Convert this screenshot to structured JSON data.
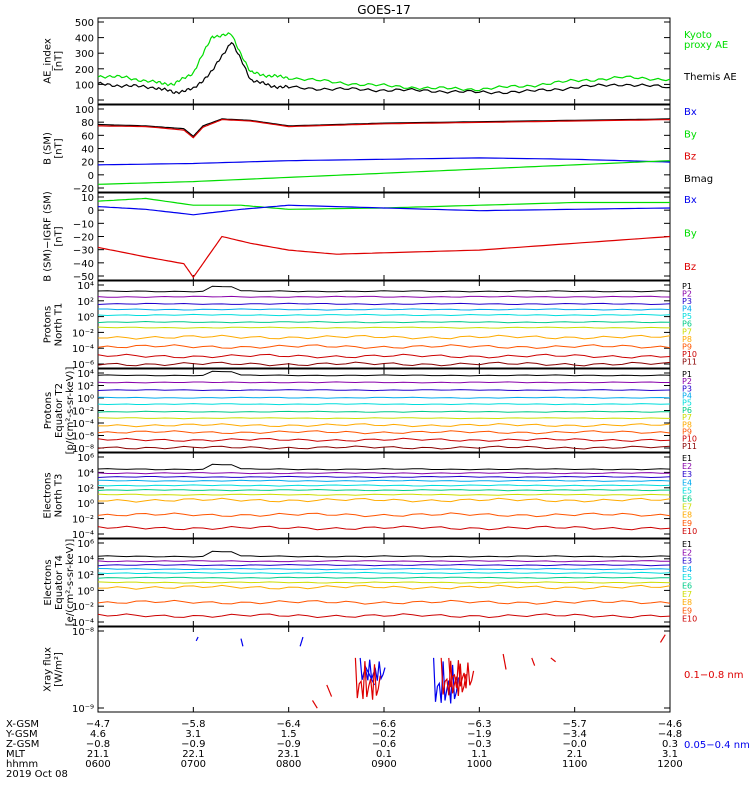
{
  "title": "GOES-17",
  "colors": {
    "black": "#000000",
    "green": "#00dd00",
    "blue": "#0000ee",
    "red": "#dd0000",
    "e_ramp": [
      "#000000",
      "#8800aa",
      "#2200cc",
      "#00aaee",
      "#00dddd",
      "#00cc88",
      "#ccdd00",
      "#ffaa00",
      "#ff5500",
      "#cc0000",
      "#880000"
    ]
  },
  "chart_data": [
    {
      "type": "line",
      "ylabel": [
        "AE_index",
        "[nT]"
      ],
      "yticks": [
        "500",
        "400",
        "300",
        "200",
        "100",
        "0"
      ],
      "ylim": [
        0,
        520
      ],
      "legend": [
        {
          "label": "Kyoto",
          "color": "#00dd00"
        },
        {
          "label": "proxy AE",
          "color": "#00dd00"
        },
        {
          "label": "Themis AE",
          "color": "#000000"
        }
      ],
      "series": [
        {
          "name": "Themis AE",
          "color": "#000000",
          "x": [
            6.0,
            6.3,
            6.6,
            6.8,
            7.0,
            7.2,
            7.4,
            7.6,
            7.8,
            8.0,
            8.5,
            9.0,
            9.5,
            10.0,
            10.5,
            11.0,
            11.5,
            12.0
          ],
          "y": [
            120,
            110,
            100,
            70,
            90,
            200,
            380,
            150,
            110,
            100,
            90,
            85,
            80,
            70,
            75,
            100,
            120,
            100
          ]
        },
        {
          "name": "Kyoto proxy AE",
          "color": "#00dd00",
          "x": [
            6.0,
            6.3,
            6.6,
            6.8,
            7.0,
            7.2,
            7.4,
            7.6,
            7.8,
            8.0,
            8.5,
            9.0,
            9.5,
            10.0,
            10.5,
            11.0,
            11.5,
            12.0
          ],
          "y": [
            170,
            160,
            130,
            120,
            190,
            410,
            420,
            190,
            170,
            160,
            130,
            110,
            95,
            90,
            110,
            140,
            160,
            150
          ]
        }
      ]
    },
    {
      "type": "line",
      "ylabel": [
        "B (SM)",
        "[nT]"
      ],
      "yticks": [
        "100",
        "80",
        "60",
        "40",
        "20",
        "0",
        "−20"
      ],
      "ylim": [
        -25,
        100
      ],
      "legend": [
        {
          "label": "Bx",
          "color": "#0000ee"
        },
        {
          "label": "By",
          "color": "#00dd00"
        },
        {
          "label": "Bz",
          "color": "#dd0000"
        },
        {
          "label": "Bmag",
          "color": "#000000"
        }
      ],
      "series": [
        {
          "name": "Bmag",
          "color": "#000000",
          "x": [
            6.0,
            6.5,
            6.9,
            7.0,
            7.1,
            7.3,
            7.6,
            8.0,
            8.5,
            9.0,
            10.0,
            11.0,
            12.0
          ],
          "y": [
            72,
            70,
            66,
            55,
            70,
            80,
            78,
            70,
            72,
            74,
            76,
            78,
            80
          ]
        },
        {
          "name": "Bz",
          "color": "#dd0000",
          "x": [
            6.0,
            6.5,
            6.9,
            7.0,
            7.1,
            7.3,
            7.6,
            8.0,
            8.5,
            9.0,
            10.0,
            11.0,
            12.0
          ],
          "y": [
            70,
            69,
            64,
            53,
            68,
            79,
            77,
            69,
            71,
            73,
            75,
            77,
            79
          ]
        },
        {
          "name": "Bx",
          "color": "#0000ee",
          "x": [
            6.0,
            7.0,
            8.0,
            9.0,
            10.0,
            11.0,
            12.0
          ],
          "y": [
            14,
            16,
            20,
            22,
            24,
            22,
            18
          ]
        },
        {
          "name": "By",
          "color": "#00dd00",
          "x": [
            6.0,
            7.0,
            8.0,
            9.0,
            10.0,
            11.0,
            12.0
          ],
          "y": [
            -14,
            -10,
            -4,
            2,
            8,
            14,
            20
          ]
        }
      ]
    },
    {
      "type": "line",
      "ylabel": [
        "B (SM)−IGRF (SM)",
        "[nT]"
      ],
      "yticks": [
        "10",
        "0",
        "−10",
        "−20",
        "−30",
        "−40",
        "−50"
      ],
      "ylim": [
        -52,
        12
      ],
      "legend": [
        {
          "label": "Bx",
          "color": "#0000ee"
        },
        {
          "label": "By",
          "color": "#00dd00"
        },
        {
          "label": "Bz",
          "color": "#dd0000"
        }
      ],
      "series": [
        {
          "name": "By",
          "color": "#00dd00",
          "x": [
            6.0,
            6.5,
            7.0,
            7.5,
            8.0,
            9.0,
            10.0,
            11.0,
            12.0
          ],
          "y": [
            6,
            8,
            3,
            3,
            0,
            1,
            3,
            5,
            5
          ]
        },
        {
          "name": "Bx",
          "color": "#0000ee",
          "x": [
            6.0,
            6.5,
            7.0,
            7.5,
            8.0,
            9.0,
            10.0,
            11.0,
            12.0
          ],
          "y": [
            2,
            0,
            -4,
            0,
            3,
            1,
            -1,
            0,
            1
          ]
        },
        {
          "name": "Bz",
          "color": "#dd0000",
          "x": [
            6.0,
            6.5,
            6.9,
            7.0,
            7.1,
            7.3,
            7.6,
            8.0,
            8.5,
            9.0,
            10.0,
            11.0,
            12.0
          ],
          "y": [
            -28,
            -35,
            -40,
            -50,
            -40,
            -20,
            -25,
            -30,
            -33,
            -32,
            -30,
            -25,
            -20
          ]
        }
      ]
    },
    {
      "type": "line",
      "ylabel": [
        "Protons",
        "North T1"
      ],
      "yticks": [
        "10⁴",
        "10²",
        "10⁰",
        "10⁻²",
        "10⁻⁴",
        "10⁻⁶"
      ],
      "ylim": [
        -6.5,
        4.5
      ],
      "legend_labels": [
        "P1",
        "P2",
        "P3",
        "P4",
        "P5",
        "P6",
        "P7",
        "P8",
        "P9",
        "P10",
        "P11"
      ],
      "levels": [
        3.2,
        2.5,
        1.6,
        0.9,
        0.2,
        -0.7,
        -1.4,
        -2.6,
        -3.8,
        -5.0,
        -6.0
      ]
    },
    {
      "type": "line",
      "ylabel": [
        "Protons",
        "Equator T2",
        "[p/(cm²-s-sr-keV)]"
      ],
      "yticks": [
        "10⁴",
        "10²",
        "10⁰",
        "10⁻²",
        "10⁻⁴",
        "10⁻⁶",
        "10⁻⁸"
      ],
      "ylim": [
        -8.5,
        4.5
      ],
      "legend_labels": [
        "P1",
        "P2",
        "P3",
        "P4",
        "P5",
        "P6",
        "P7",
        "P8",
        "P9",
        "P10",
        "P11"
      ],
      "levels": [
        3.5,
        2.4,
        1.2,
        0.0,
        -1.0,
        -2.2,
        -3.2,
        -4.3,
        -5.4,
        -6.6,
        -7.8
      ]
    },
    {
      "type": "line",
      "ylabel": [
        "Electrons",
        "North T3"
      ],
      "yticks": [
        "10⁶",
        "10⁴",
        "10²",
        "10⁰",
        "10⁻²",
        "10⁻⁴"
      ],
      "ylim": [
        -4.5,
        6.5
      ],
      "legend_labels": [
        "E1",
        "E2",
        "E3",
        "E4",
        "E5",
        "E6",
        "E7",
        "E8",
        "E9",
        "E10"
      ],
      "levels": [
        4.4,
        3.9,
        3.4,
        2.9,
        2.3,
        1.7,
        1.1,
        0.4,
        -1.5,
        -3.2
      ]
    },
    {
      "type": "line",
      "ylabel": [
        "Electrons",
        "Equator T4",
        "[e/(cm²-s-sr-keV)]"
      ],
      "yticks": [
        "10⁶",
        "10⁴",
        "10²",
        "10⁰",
        "10⁻²",
        "10⁻⁴"
      ],
      "ylim": [
        -4.5,
        6.5
      ],
      "legend_labels": [
        "E1",
        "E2",
        "E3",
        "E4",
        "E5",
        "E6",
        "E7",
        "E8",
        "E9",
        "E10"
      ],
      "levels": [
        4.3,
        3.7,
        3.2,
        2.7,
        2.2,
        1.6,
        1.0,
        0.4,
        -1.5,
        -3.2
      ]
    },
    {
      "type": "line",
      "ylabel": [
        "Xray flux",
        "[W/m²]"
      ],
      "yticks": [
        "10⁻⁸",
        "10⁻⁹"
      ],
      "ylim": [
        -9.05,
        -7.95
      ],
      "legend": [
        {
          "label": "0.1−0.8 nm",
          "color": "#dd0000"
        },
        {
          "label": "0.05−0.4 nm",
          "color": "#0000ee"
        }
      ]
    }
  ],
  "x_axis": {
    "range": [
      6,
      12
    ],
    "row_labels": [
      "X-GSM",
      "Y-GSM",
      "Z-GSM",
      "MLT",
      "hhmm",
      "2019 Oct 08"
    ],
    "columns": [
      [
        "−4.7",
        "4.6",
        "−0.8",
        "21.1",
        "0600"
      ],
      [
        "−5.8",
        "3.1",
        "−0.9",
        "22.1",
        "0700"
      ],
      [
        "−6.4",
        "1.5",
        "−0.9",
        "23.1",
        "0800"
      ],
      [
        "−6.6",
        "−0.2",
        "−0.6",
        "0.1",
        "0900"
      ],
      [
        "−6.3",
        "−1.9",
        "−0.3",
        "1.1",
        "1000"
      ],
      [
        "−5.7",
        "−3.4",
        "−0.0",
        "2.1",
        "1100"
      ],
      [
        "−4.6",
        "−4.8",
        "0.3",
        "3.1",
        "1200"
      ]
    ]
  }
}
